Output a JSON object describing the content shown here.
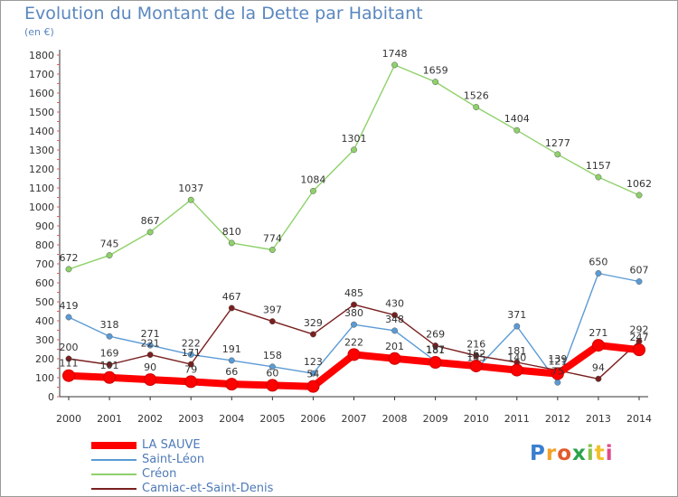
{
  "header": {
    "title": "Evolution du Montant de la Dette par Habitant",
    "unit": "(en €)"
  },
  "logo": {
    "text": "Proxiti",
    "colors": [
      "#3a7fd0",
      "#f2a22a",
      "#e15b2a",
      "#2aa34a",
      "#8bc34a",
      "#f2c12a",
      "#e04a8a"
    ]
  },
  "chart_data": {
    "type": "line",
    "title": "Evolution du Montant de la Dette par Habitant",
    "ylabel": "(en €)",
    "xlabel": "",
    "x": [
      2000,
      2001,
      2002,
      2003,
      2004,
      2005,
      2006,
      2007,
      2008,
      2009,
      2010,
      2011,
      2012,
      2013,
      2014
    ],
    "ylim": [
      0,
      1800
    ],
    "yticks": [
      0,
      100,
      200,
      300,
      400,
      500,
      600,
      700,
      800,
      900,
      1000,
      1100,
      1200,
      1300,
      1400,
      1500,
      1600,
      1700,
      1800
    ],
    "grid": false,
    "legend_position": "bottom-left",
    "series": [
      {
        "name": "LA SAUVE",
        "color": "#ff0000",
        "values": [
          111,
          101,
          90,
          79,
          66,
          60,
          54,
          222,
          201,
          181,
          162,
          140,
          121,
          271,
          247
        ]
      },
      {
        "name": "Saint-Léon",
        "color": "#5b9bd5",
        "values": [
          419,
          318,
          271,
          222,
          191,
          158,
          123,
          380,
          348,
          187,
          145,
          371,
          75,
          650,
          607
        ]
      },
      {
        "name": "Créon",
        "color": "#8ed16a",
        "values": [
          672,
          745,
          867,
          1037,
          810,
          774,
          1084,
          1301,
          1748,
          1659,
          1526,
          1404,
          1277,
          1157,
          1062
        ]
      },
      {
        "name": "Camiac-et-Saint-Denis",
        "color": "#7a1f1f",
        "values": [
          200,
          169,
          221,
          171,
          467,
          397,
          329,
          485,
          430,
          269,
          216,
          181,
          139,
          94,
          292
        ]
      }
    ]
  }
}
